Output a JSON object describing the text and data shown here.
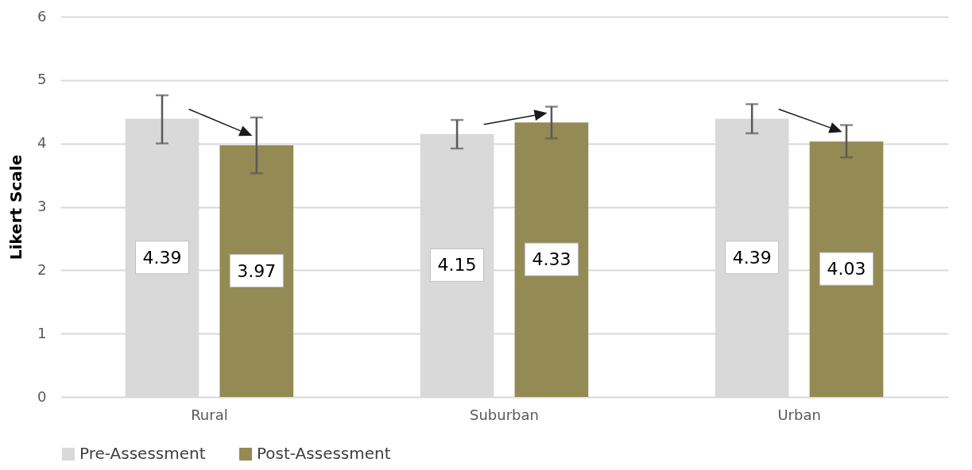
{
  "chart_data": {
    "type": "bar",
    "ylabel": "Likert Scale",
    "categories": [
      "Rural",
      "Suburban",
      "Urban"
    ],
    "series": [
      {
        "name": "Pre-Assessment",
        "color": "#d9d9d9",
        "values": [
          4.39,
          4.15,
          4.39
        ],
        "errors": [
          [
            4.0,
            4.76
          ],
          [
            3.92,
            4.37
          ],
          [
            4.16,
            4.62
          ]
        ]
      },
      {
        "name": "Post-Assessment",
        "color": "#948a54",
        "values": [
          3.97,
          4.33,
          4.03
        ],
        "errors": [
          [
            3.53,
            4.41
          ],
          [
            4.08,
            4.58
          ],
          [
            3.78,
            4.29
          ]
        ]
      }
    ],
    "ylim": [
      0,
      6
    ],
    "yticks": [
      0,
      1,
      2,
      3,
      4,
      5,
      6
    ],
    "grid": "y",
    "legend": "bottom",
    "data_labels": true
  }
}
